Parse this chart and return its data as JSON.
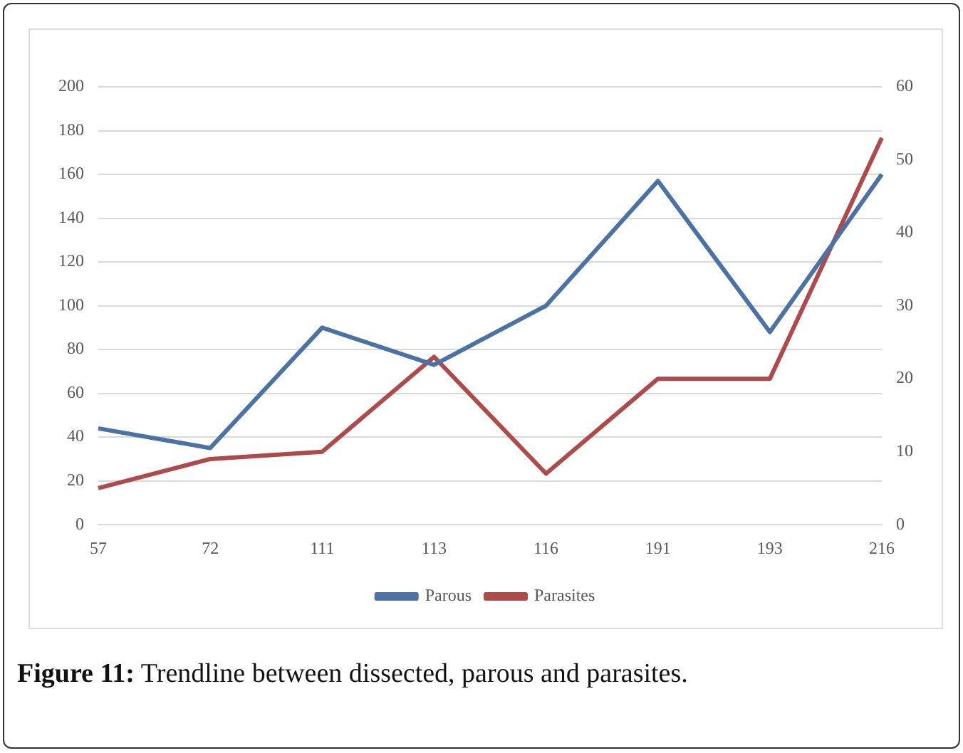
{
  "chart_data": {
    "type": "line",
    "categories": [
      "57",
      "72",
      "111",
      "113",
      "116",
      "191",
      "193",
      "216"
    ],
    "series": [
      {
        "name": "Parous",
        "color": "#4a72a6",
        "values": [
          44,
          35,
          90,
          73,
          100,
          157,
          88,
          160
        ]
      },
      {
        "name": "Parasites",
        "color": "#b04a4a",
        "values": [
          5,
          9,
          10,
          23,
          7,
          20,
          20,
          53
        ],
        "axis": "y2"
      }
    ],
    "ylim": [
      0,
      200
    ],
    "yticks": [
      0,
      20,
      40,
      60,
      80,
      100,
      120,
      140,
      160,
      180,
      200
    ],
    "y2lim": [
      0,
      60
    ],
    "y2ticks": [
      0,
      10,
      20,
      30,
      40,
      50,
      60
    ],
    "grid": "y",
    "legend": "bottom",
    "marker": "none",
    "line_style": "solid",
    "annotations": [
      "Figure 11: Trendline between dissected, parous and parasites."
    ]
  }
}
